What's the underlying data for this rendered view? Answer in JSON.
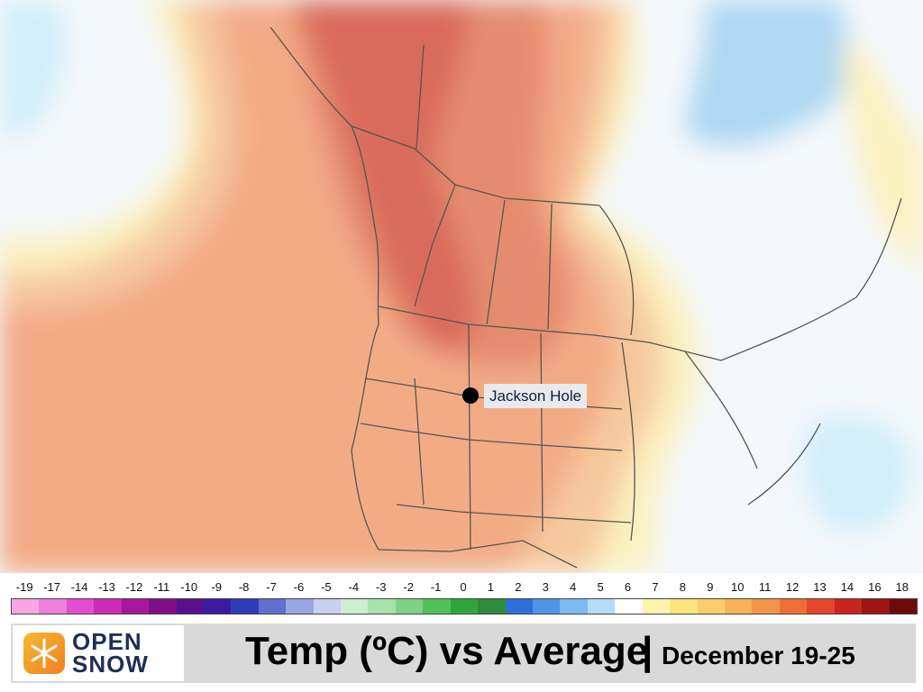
{
  "map": {
    "location_label": "Jackson Hole",
    "colors": {
      "ocean_neutral": "#f4f8fb",
      "pale_yellow": "#fbf0bf",
      "light_orange": "#f6c99e",
      "orange": "#f3ab86",
      "red_orange": "#e58c70",
      "deep_red": "#d96b5c",
      "pale_blue": "#d2eefb",
      "light_blue": "#aed8f3",
      "border": "#555555"
    }
  },
  "legend": {
    "ticks": [
      "-19",
      "-17",
      "-14",
      "-13",
      "-12",
      "-11",
      "-10",
      "-9",
      "-8",
      "-7",
      "-6",
      "-5",
      "-4",
      "-3",
      "-2",
      "-1",
      "0",
      "1",
      "2",
      "3",
      "4",
      "5",
      "6",
      "7",
      "8",
      "9",
      "10",
      "11",
      "12",
      "13",
      "14",
      "16",
      "18"
    ],
    "colors": [
      "#f5a6e6",
      "#ee7fdc",
      "#e24ecf",
      "#cb2bb5",
      "#a8179b",
      "#7e0f87",
      "#5a0f8f",
      "#3b1aa0",
      "#2e3cb8",
      "#5f6fcf",
      "#9aa6e2",
      "#c9cff0",
      "#cdeed0",
      "#a7e3a9",
      "#7fd285",
      "#53c15b",
      "#2fa63a",
      "#2f8a3c",
      "#2f6fd8",
      "#4e95e8",
      "#7eb9f0",
      "#b4dcf7",
      "#ffffff",
      "#fdf4b0",
      "#fbe47e",
      "#f9cd6a",
      "#f7b25a",
      "#f39448",
      "#ee6f36",
      "#e3462a",
      "#c8251e",
      "#9c1313",
      "#6e0a0a"
    ]
  },
  "banner": {
    "logo_line1": "OPEN",
    "logo_line2": "SNOW",
    "title": "Temp (ºC) vs Average",
    "separator": "|",
    "dates": "December 19-25"
  }
}
